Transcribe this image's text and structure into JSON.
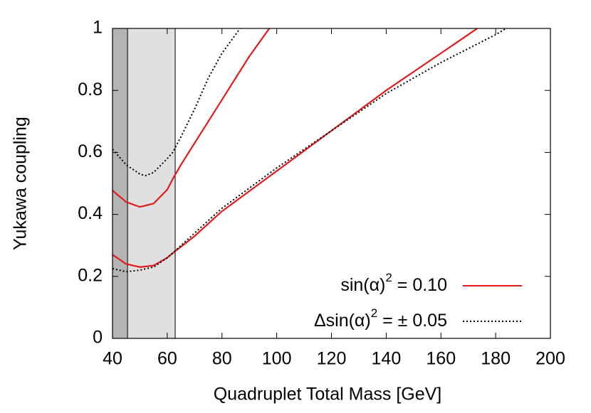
{
  "chart_data": {
    "type": "line",
    "xlabel": "Quadruplet Total Mass [GeV]",
    "ylabel": "Yukawa coupling",
    "xlim": [
      40,
      200
    ],
    "ylim": [
      0,
      1
    ],
    "xticks": [
      40,
      60,
      80,
      100,
      120,
      140,
      160,
      180,
      200
    ],
    "yticks": [
      0,
      0.2,
      0.4,
      0.6,
      0.8,
      1
    ],
    "shaded_regions": [
      {
        "xmin": 40,
        "xmax": 62.9,
        "color": "#e0e0e0"
      },
      {
        "xmin": 40,
        "xmax": 45.5,
        "color": "#b4b4b4"
      }
    ],
    "series": [
      {
        "color": "#e41a1c",
        "dash": false,
        "x": [
          40,
          45,
          50,
          55,
          60,
          62,
          65,
          70,
          75,
          80,
          85,
          90,
          97.3
        ],
        "values": [
          0.477,
          0.44,
          0.424,
          0.435,
          0.48,
          0.514,
          0.56,
          0.63,
          0.7,
          0.77,
          0.84,
          0.91,
          1.0
        ]
      },
      {
        "color": "#e41a1c",
        "dash": false,
        "x": [
          40,
          45,
          50,
          55,
          60,
          62,
          70,
          80,
          100,
          120,
          140,
          160,
          173.3
        ],
        "values": [
          0.27,
          0.24,
          0.23,
          0.235,
          0.26,
          0.275,
          0.33,
          0.41,
          0.54,
          0.67,
          0.8,
          0.92,
          1.0
        ]
      },
      {
        "color": "#000000",
        "dash": true,
        "x": [
          40,
          45,
          50,
          52,
          55,
          60,
          62,
          65,
          70,
          75,
          80,
          86.6
        ],
        "values": [
          0.61,
          0.56,
          0.53,
          0.525,
          0.535,
          0.58,
          0.6,
          0.65,
          0.74,
          0.84,
          0.92,
          1.0
        ]
      },
      {
        "color": "#000000",
        "dash": true,
        "x": [
          40,
          45,
          50,
          55,
          60,
          62,
          70,
          80,
          100,
          120,
          140,
          160,
          180,
          183.8
        ],
        "values": [
          0.225,
          0.215,
          0.22,
          0.23,
          0.26,
          0.275,
          0.34,
          0.42,
          0.55,
          0.67,
          0.79,
          0.89,
          0.98,
          1.0
        ]
      }
    ],
    "legend": [
      {
        "parts": [
          "sin(α)",
          "2",
          " = 0.10"
        ],
        "color": "#e41a1c",
        "dash": false
      },
      {
        "parts": [
          "Δsin(α)",
          "2",
          " = ± 0.05"
        ],
        "color": "#000000",
        "dash": true
      }
    ]
  }
}
